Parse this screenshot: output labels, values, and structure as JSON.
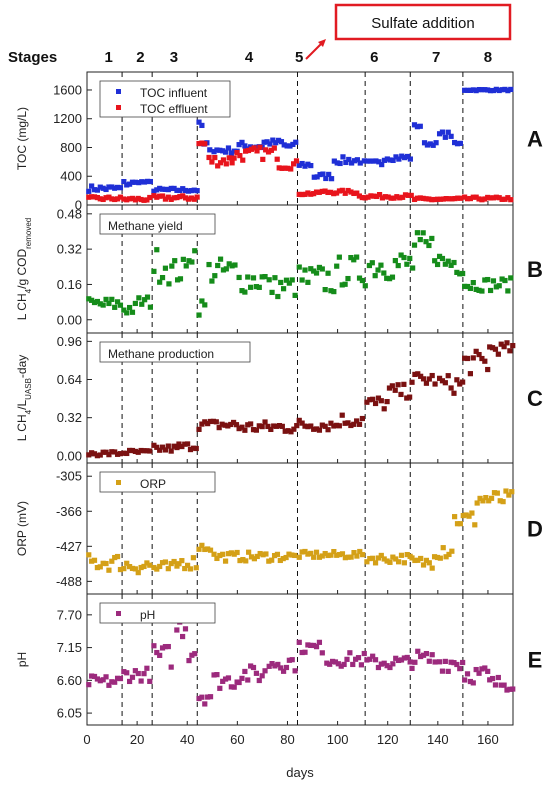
{
  "figure": {
    "stages_label": "Stages",
    "stages": [
      {
        "label": "1",
        "x": 13
      },
      {
        "label": "2",
        "x": 32
      },
      {
        "label": "3",
        "x": 52
      },
      {
        "label": "4",
        "x": 97
      },
      {
        "label": "5",
        "x": 127
      },
      {
        "label": "6",
        "x": 172
      },
      {
        "label": "7",
        "x": 209
      },
      {
        "label": "8",
        "x": 240
      }
    ],
    "stage_boundaries": [
      14,
      26,
      44,
      84,
      111,
      129,
      150
    ],
    "annotation": "Sulfate addition",
    "annotation_color": "#e11b22",
    "xlabel": "days",
    "xlim": [
      0,
      170
    ],
    "xticks": [
      0,
      20,
      40,
      60,
      80,
      100,
      120,
      140,
      160
    ]
  },
  "chart_data": [
    {
      "type": "scatter",
      "panel": "A",
      "ylabel": "TOC (mg/L)",
      "ylim": [
        0,
        1850
      ],
      "yticks": [
        "0",
        "400",
        "800",
        "1200",
        "1600"
      ],
      "ytick_values": [
        0,
        400,
        800,
        1200,
        1600
      ],
      "legend": [
        "TOC influent",
        "TOC effluent"
      ],
      "series": [
        {
          "name": "TOC influent",
          "color": "#1f2fd6",
          "segments": [
            [
              0,
              14,
              230,
              40
            ],
            [
              14,
              20,
              300,
              40
            ],
            [
              20,
              26,
              320,
              10
            ],
            [
              26,
              44,
              210,
              25
            ],
            [
              44,
              46,
              1100,
              60
            ],
            [
              46,
              50,
              820,
              60
            ],
            [
              50,
              60,
              760,
              40
            ],
            [
              60,
              70,
              820,
              60
            ],
            [
              70,
              78,
              870,
              40
            ],
            [
              78,
              84,
              820,
              60
            ],
            [
              84,
              90,
              560,
              40
            ],
            [
              90,
              98,
              400,
              40
            ],
            [
              98,
              110,
              620,
              50
            ],
            [
              110,
              118,
              580,
              40
            ],
            [
              118,
              130,
              660,
              40
            ],
            [
              130,
              134,
              1100,
              20
            ],
            [
              134,
              140,
              850,
              20
            ],
            [
              140,
              146,
              980,
              40
            ],
            [
              146,
              150,
              850,
              20
            ],
            [
              150,
              170,
              1600,
              10
            ]
          ]
        },
        {
          "name": "TOC effluent",
          "color": "#e8141c",
          "segments": [
            [
              0,
              14,
              90,
              25
            ],
            [
              14,
              26,
              80,
              25
            ],
            [
              26,
              44,
              100,
              30
            ],
            [
              44,
              48,
              850,
              90
            ],
            [
              48,
              58,
              620,
              80
            ],
            [
              58,
              66,
              700,
              90
            ],
            [
              66,
              76,
              720,
              90
            ],
            [
              76,
              84,
              560,
              60
            ],
            [
              84,
              92,
              160,
              20
            ],
            [
              92,
              108,
              180,
              25
            ],
            [
              108,
              130,
              120,
              25
            ],
            [
              130,
              150,
              80,
              20
            ],
            [
              150,
              170,
              90,
              20
            ]
          ]
        }
      ]
    },
    {
      "type": "scatter",
      "panel": "B",
      "ylabel": "L CH4/g COD removed",
      "ylim": [
        -0.06,
        0.52
      ],
      "yticks": [
        "0.00",
        "0.16",
        "0.32",
        "0.48"
      ],
      "ytick_values": [
        0,
        0.16,
        0.32,
        0.48
      ],
      "legend": [
        "Methane yield"
      ],
      "series": [
        {
          "name": "Methane yield",
          "color": "#158c1a",
          "segments": [
            [
              0,
              14,
              0.07,
              0.03
            ],
            [
              14,
              20,
              0.05,
              0.03
            ],
            [
              20,
              26,
              0.08,
              0.03
            ],
            [
              26,
              32,
              0.25,
              0.08
            ],
            [
              32,
              40,
              0.22,
              0.06
            ],
            [
              40,
              44,
              0.3,
              0.05
            ],
            [
              44,
              48,
              0.06,
              0.04
            ],
            [
              48,
              60,
              0.22,
              0.06
            ],
            [
              60,
              72,
              0.18,
              0.06
            ],
            [
              72,
              84,
              0.15,
              0.05
            ],
            [
              84,
              100,
              0.18,
              0.07
            ],
            [
              100,
              112,
              0.22,
              0.07
            ],
            [
              112,
              130,
              0.25,
              0.07
            ],
            [
              130,
              140,
              0.32,
              0.08
            ],
            [
              140,
              150,
              0.26,
              0.06
            ],
            [
              150,
              170,
              0.16,
              0.03
            ]
          ]
        }
      ]
    },
    {
      "type": "scatter",
      "panel": "C",
      "ylabel": "L CH4/L UASB-day",
      "ylim": [
        -0.06,
        1.03
      ],
      "yticks": [
        "0.00",
        "0.32",
        "0.64",
        "0.96"
      ],
      "ytick_values": [
        0,
        0.32,
        0.64,
        0.96
      ],
      "legend": [
        "Methane production"
      ],
      "series": [
        {
          "name": "Methane production",
          "color": "#7a1111",
          "segments": [
            [
              0,
              14,
              0.02,
              0.02
            ],
            [
              14,
              26,
              0.03,
              0.02
            ],
            [
              26,
              36,
              0.06,
              0.03
            ],
            [
              36,
              44,
              0.08,
              0.03
            ],
            [
              44,
              60,
              0.26,
              0.04
            ],
            [
              60,
              84,
              0.24,
              0.05
            ],
            [
              84,
              100,
              0.26,
              0.05
            ],
            [
              100,
              111,
              0.3,
              0.06
            ],
            [
              111,
              120,
              0.44,
              0.06
            ],
            [
              120,
              129,
              0.54,
              0.06
            ],
            [
              129,
              140,
              0.64,
              0.06
            ],
            [
              140,
              150,
              0.6,
              0.08
            ],
            [
              150,
              160,
              0.78,
              0.1
            ],
            [
              160,
              170,
              0.9,
              0.05
            ]
          ]
        }
      ]
    },
    {
      "type": "scatter",
      "panel": "D",
      "ylabel": "ORP (mV)",
      "ylim": [
        -510,
        -282
      ],
      "yticks": [
        "-305",
        "-366",
        "-427",
        "-488"
      ],
      "ytick_values": [
        -305,
        -366,
        -427,
        -488
      ],
      "legend": [
        "ORP"
      ],
      "series": [
        {
          "name": "ORP",
          "color": "#d4a017",
          "segments": [
            [
              0,
              14,
              -455,
              15
            ],
            [
              14,
              26,
              -460,
              15
            ],
            [
              26,
              36,
              -465,
              12
            ],
            [
              36,
              44,
              -455,
              12
            ],
            [
              44,
              50,
              -428,
              8
            ],
            [
              50,
              84,
              -445,
              8
            ],
            [
              84,
              111,
              -442,
              6
            ],
            [
              111,
              129,
              -448,
              8
            ],
            [
              129,
              138,
              -455,
              10
            ],
            [
              138,
              146,
              -430,
              20
            ],
            [
              146,
              155,
              -380,
              15
            ],
            [
              155,
              170,
              -345,
              15
            ]
          ]
        }
      ]
    },
    {
      "type": "scatter",
      "panel": "E",
      "ylabel": "pH",
      "ylim": [
        5.85,
        8.05
      ],
      "yticks": [
        "6.05",
        "6.60",
        "7.15",
        "7.70"
      ],
      "ytick_values": [
        6.05,
        6.6,
        7.15,
        7.7
      ],
      "legend": [
        "pH"
      ],
      "series": [
        {
          "name": "pH",
          "color": "#9c2a7d",
          "segments": [
            [
              0,
              14,
              6.58,
              0.1
            ],
            [
              14,
              26,
              6.7,
              0.12
            ],
            [
              26,
              34,
              7.0,
              0.2
            ],
            [
              34,
              40,
              7.5,
              0.2
            ],
            [
              40,
              44,
              7.1,
              0.2
            ],
            [
              44,
              50,
              6.35,
              0.15
            ],
            [
              50,
              60,
              6.6,
              0.15
            ],
            [
              60,
              72,
              6.7,
              0.15
            ],
            [
              72,
              84,
              6.9,
              0.15
            ],
            [
              84,
              95,
              7.15,
              0.1
            ],
            [
              95,
              111,
              6.95,
              0.12
            ],
            [
              111,
              129,
              6.9,
              0.12
            ],
            [
              129,
              140,
              6.95,
              0.15
            ],
            [
              140,
              150,
              6.9,
              0.15
            ],
            [
              150,
              160,
              6.7,
              0.15
            ],
            [
              160,
              170,
              6.55,
              0.12
            ]
          ]
        }
      ]
    }
  ],
  "panel_labels": [
    "A",
    "B",
    "C",
    "D",
    "E"
  ]
}
